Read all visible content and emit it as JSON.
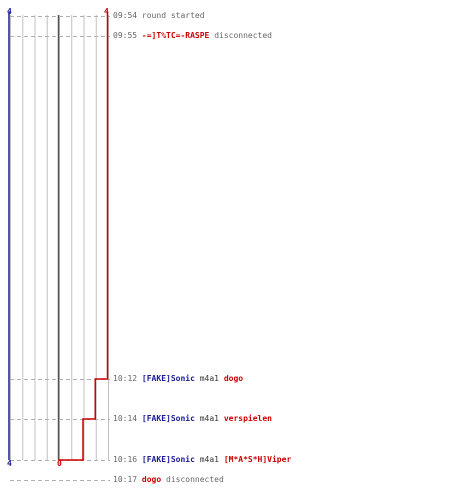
{
  "colors": {
    "blue_team": "#1a1a99",
    "red_team": "#cc0000",
    "grid": "#c0c0c0",
    "center_line": "#555555",
    "dash": "#b0b0b0",
    "text": "#555555"
  },
  "axis": {
    "blue_top": "4",
    "red_top": "4",
    "blue_bottom": "4",
    "red_bottom": "0"
  },
  "events": [
    {
      "time": "09:54",
      "parts": [
        {
          "text": "round started",
          "style": "ts"
        }
      ]
    },
    {
      "time": "09:55",
      "parts": [
        {
          "text": "-=]T%TC=-RASPE",
          "style": "red"
        },
        {
          "text": "disconnected",
          "style": "ts"
        }
      ]
    },
    {
      "time": "10:12",
      "parts": [
        {
          "text": "[FAKE]Sonic",
          "style": "blue"
        },
        {
          "text": "m4a1",
          "style": "plain"
        },
        {
          "text": "dogo",
          "style": "red"
        }
      ]
    },
    {
      "time": "10:14",
      "parts": [
        {
          "text": "[FAKE]Sonic",
          "style": "blue"
        },
        {
          "text": "m4a1",
          "style": "plain"
        },
        {
          "text": "verspielen",
          "style": "red"
        }
      ]
    },
    {
      "time": "10:16",
      "parts": [
        {
          "text": "[FAKE]Sonic",
          "style": "blue"
        },
        {
          "text": "m4a1",
          "style": "plain"
        },
        {
          "text": "[M*A*S*H]Viper",
          "style": "red"
        }
      ]
    },
    {
      "time": "10:17",
      "parts": [
        {
          "text": "dogo",
          "style": "red"
        },
        {
          "text": "disconnected",
          "style": "ts"
        }
      ]
    }
  ],
  "chart_data": {
    "type": "line",
    "series": [
      {
        "values": [
          4,
          4,
          4,
          4,
          4,
          4
        ]
      },
      {
        "values": [
          4,
          4,
          3,
          2,
          0,
          0
        ]
      }
    ],
    "ylim": [
      0,
      4
    ]
  }
}
